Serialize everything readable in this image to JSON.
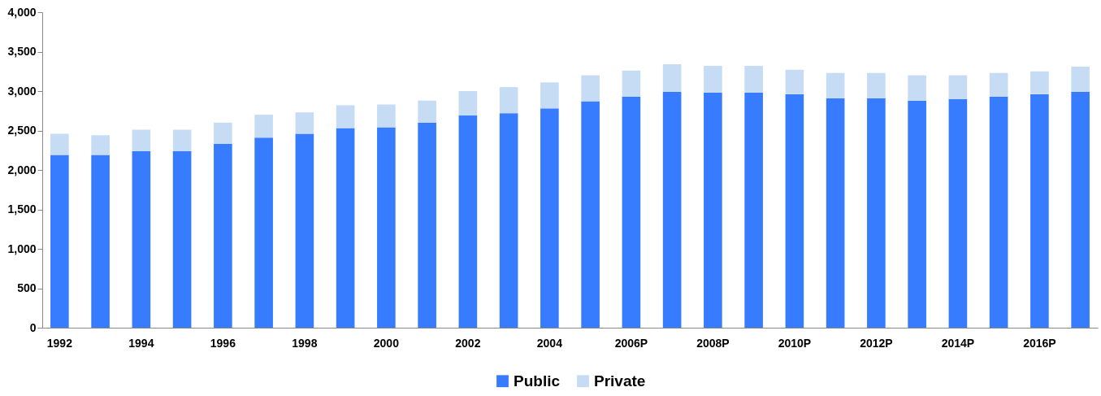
{
  "chart_data": {
    "type": "bar",
    "stacked": true,
    "categories": [
      "1992",
      null,
      "1994",
      null,
      "1996",
      null,
      "1998",
      null,
      "2000",
      null,
      "2002",
      null,
      "2004",
      null,
      "2006P",
      null,
      "2008P",
      null,
      "2010P",
      null,
      "2012P",
      null,
      "2014P",
      null,
      "2016P",
      null
    ],
    "series": [
      {
        "name": "Public",
        "color": "#377bff",
        "values": [
          2190,
          2190,
          2240,
          2240,
          2330,
          2410,
          2460,
          2530,
          2540,
          2600,
          2690,
          2720,
          2780,
          2870,
          2930,
          2990,
          2980,
          2980,
          2960,
          2910,
          2910,
          2880,
          2900,
          2930,
          2960,
          2990
        ]
      },
      {
        "name": "Private",
        "color": "#c6dcf4",
        "values": [
          270,
          250,
          270,
          270,
          270,
          290,
          270,
          290,
          290,
          280,
          310,
          330,
          330,
          330,
          330,
          350,
          340,
          340,
          310,
          320,
          320,
          320,
          300,
          300,
          290,
          320
        ]
      }
    ],
    "ylim": [
      0,
      4000
    ],
    "yticks": [
      0,
      500,
      {
        "value": 1000,
        "label": "1,000"
      },
      {
        "value": 1500,
        "label": "1,500"
      },
      {
        "value": 2000,
        "label": "2,000"
      },
      {
        "value": 2500,
        "label": "2,500"
      },
      {
        "value": 3000,
        "label": "3,000"
      },
      {
        "value": 3500,
        "label": "3,500"
      },
      {
        "value": 4000,
        "label": "4,000"
      }
    ],
    "grid": false,
    "legend": "bottom"
  }
}
